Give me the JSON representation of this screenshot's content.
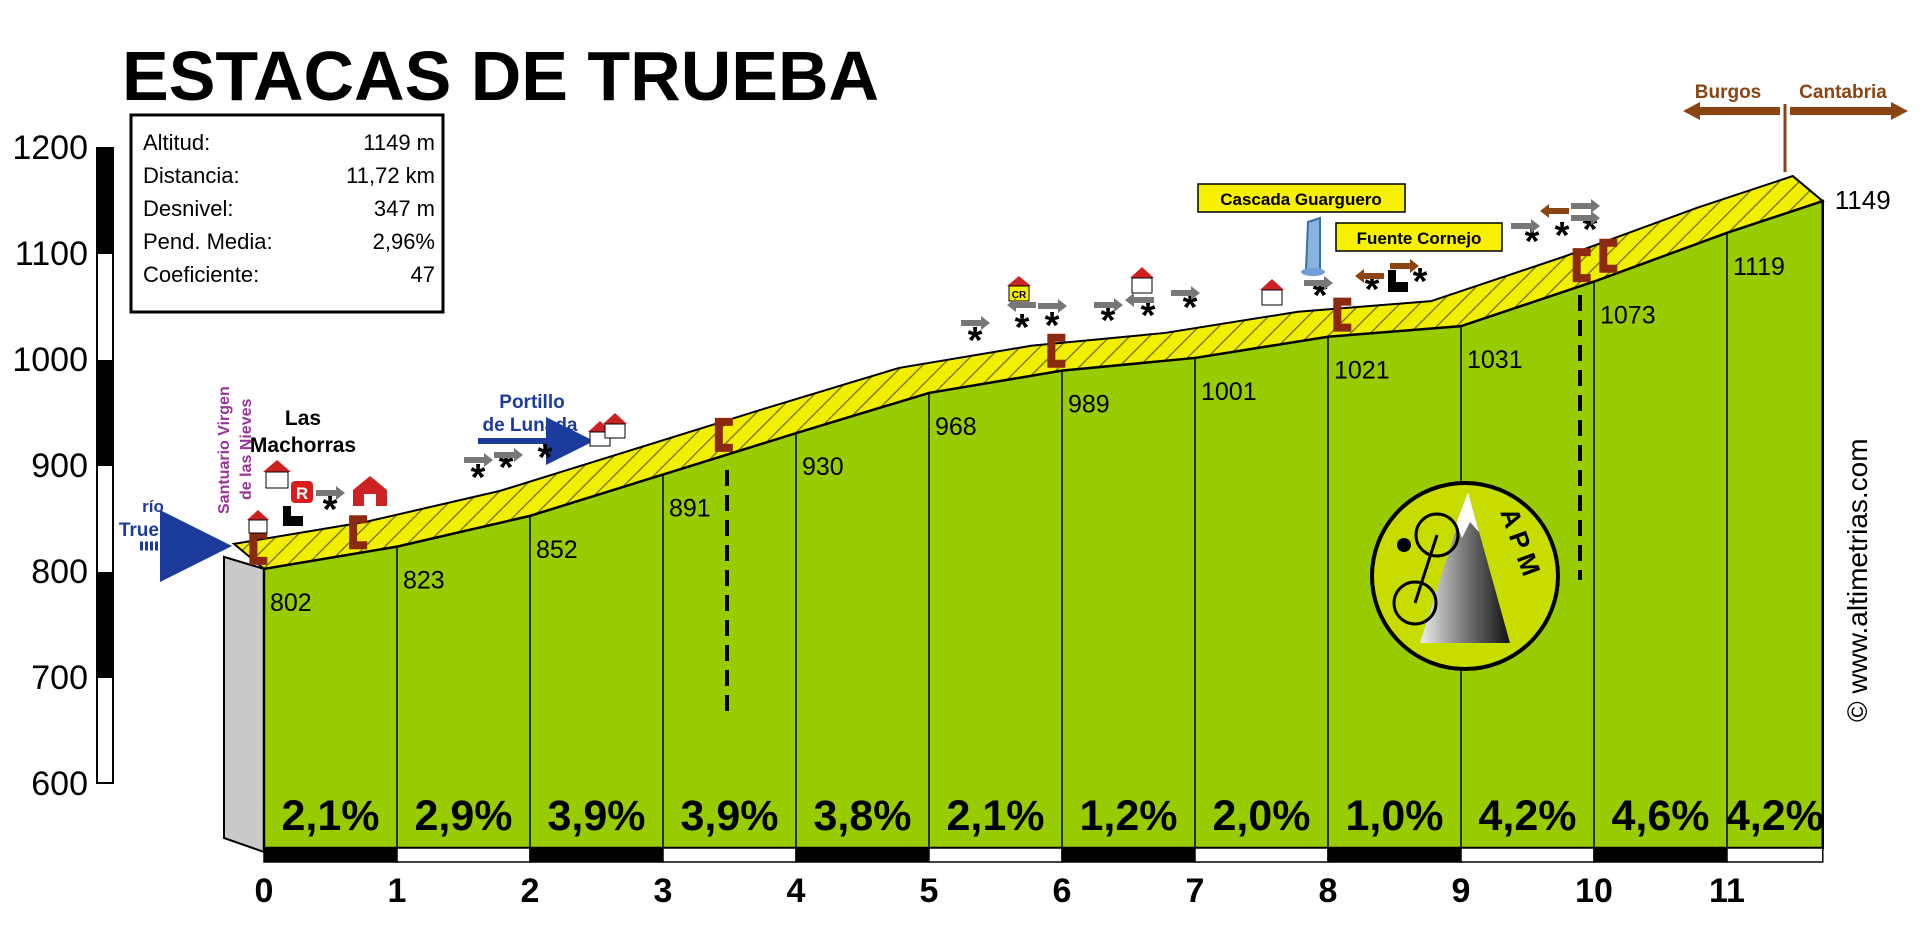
{
  "chart_data": {
    "type": "area",
    "title": "ESTACAS DE TRUEBA",
    "info_box": [
      {
        "label": "Altitud:",
        "value": "1149 m"
      },
      {
        "label": "Distancia:",
        "value": "11,72 km"
      },
      {
        "label": "Desnivel:",
        "value": "347 m"
      },
      {
        "label": "Pend. Media:",
        "value": "2,96%"
      },
      {
        "label": "Coeficiente:",
        "value": "47"
      }
    ],
    "y_ticks": [
      "1200",
      "1100",
      "1000",
      "900",
      "800",
      "700",
      "600"
    ],
    "ylim": [
      600,
      1200
    ],
    "x_ticks": [
      "0",
      "1",
      "2",
      "3",
      "4",
      "5",
      "6",
      "7",
      "8",
      "9",
      "10",
      "11"
    ],
    "xlim": [
      0,
      11.72
    ],
    "profile": {
      "x": [
        0,
        1,
        2,
        3,
        4,
        5,
        6,
        7,
        8,
        9,
        10,
        11,
        11.72
      ],
      "y": [
        802,
        823,
        852,
        891,
        930,
        968,
        989,
        1001,
        1021,
        1031,
        1073,
        1119,
        1149
      ]
    },
    "km_altitude_labels": [
      "802",
      "823",
      "852",
      "891",
      "930",
      "968",
      "989",
      "1001",
      "1021",
      "1031",
      "1073",
      "1119"
    ],
    "end_altitude_label": "1149",
    "gradients": [
      "2,1%",
      "2,9%",
      "3,9%",
      "3,9%",
      "3,8%",
      "2,1%",
      "1,2%",
      "2,0%",
      "1,0%",
      "4,2%",
      "4,6%",
      "4,2%"
    ],
    "annotations": {
      "rio_line1": "río",
      "rio_line2": "Trueba",
      "santuario_line1": "Santuario Virgen",
      "santuario_line2": "de las Nieves",
      "machorras_line1": "Las",
      "machorras_line2": "Machorras",
      "portillo_line1": "Portillo",
      "portillo_line2": "de Lunada",
      "cascada": "Cascada Guarguero",
      "fuente": "Fuente Cornejo",
      "burgos": "Burgos",
      "cantabria": "Cantabria",
      "cr_badge": "CR",
      "r_badge": "R",
      "watermark": "© www.altimetrias.com",
      "logo": "APM"
    },
    "colors": {
      "fill": "#99cc00",
      "road": "#f2ee00",
      "sign": "#8b2a10",
      "brown_arrow": "#8b4513",
      "blue": "#1b3c9c",
      "purple": "#993399"
    }
  }
}
